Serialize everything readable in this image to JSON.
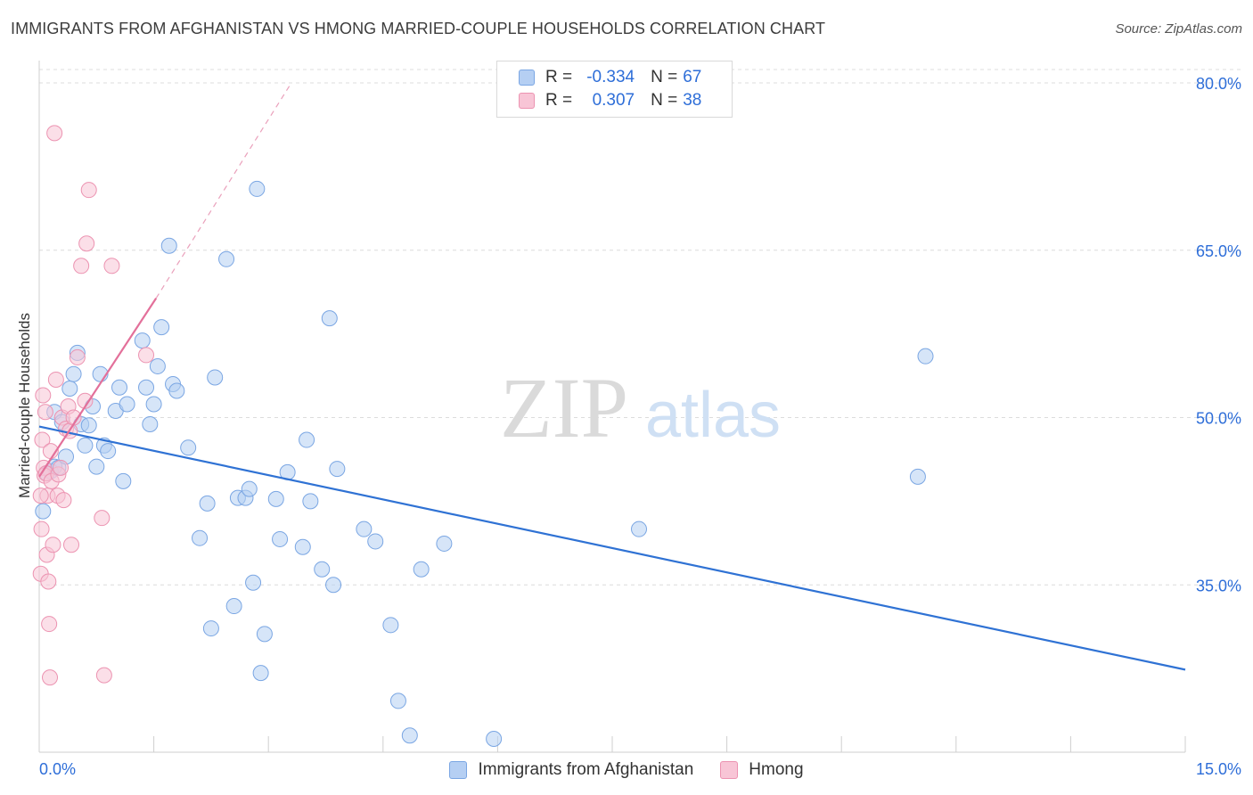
{
  "header": {
    "title": "IMMIGRANTS FROM AFGHANISTAN VS HMONG MARRIED-COUPLE HOUSEHOLDS CORRELATION CHART",
    "source": "Source: ZipAtlas.com"
  },
  "watermark": {
    "zip": "ZIP",
    "atlas": "atlas"
  },
  "legend": {
    "r_label": "R =",
    "n_label": "N =",
    "series": [
      {
        "name": "Immigrants from Afghanistan",
        "r": "-0.334",
        "n": "67",
        "color": "#b5cff3"
      },
      {
        "name": "Hmong",
        "r": "0.307",
        "n": "38",
        "color": "#f8c5d6"
      }
    ]
  },
  "chart_data": {
    "type": "scatter",
    "title": "IMMIGRANTS FROM AFGHANISTAN VS HMONG MARRIED-COUPLE HOUSEHOLDS CORRELATION CHART",
    "xlabel": "",
    "ylabel": "Married-couple Households",
    "xlim": [
      0,
      15
    ],
    "ylim": [
      20,
      82
    ],
    "x_tick_labels": [
      "0.0%",
      "15.0%"
    ],
    "y_ticks": [
      35,
      50,
      65,
      80
    ],
    "y_tick_labels": [
      "35.0%",
      "50.0%",
      "65.0%",
      "80.0%"
    ],
    "grid": true,
    "series": [
      {
        "name": "Immigrants from Afghanistan",
        "color": "#7aa6e3",
        "fill": "#b5cff3",
        "trend": {
          "x": [
            0.0,
            15.0
          ],
          "y": [
            49.2,
            27.4
          ]
        },
        "points": [
          [
            0.05,
            41.6
          ],
          [
            0.1,
            45.0
          ],
          [
            0.15,
            45.2
          ],
          [
            0.2,
            45.6
          ],
          [
            0.25,
            45.5
          ],
          [
            0.2,
            50.5
          ],
          [
            0.3,
            49.6
          ],
          [
            0.35,
            46.5
          ],
          [
            0.4,
            52.6
          ],
          [
            0.45,
            53.9
          ],
          [
            0.5,
            55.8
          ],
          [
            0.55,
            49.4
          ],
          [
            0.6,
            47.5
          ],
          [
            0.65,
            49.3
          ],
          [
            0.7,
            51.0
          ],
          [
            0.75,
            45.6
          ],
          [
            0.8,
            53.9
          ],
          [
            0.85,
            47.5
          ],
          [
            0.9,
            47.0
          ],
          [
            1.0,
            50.6
          ],
          [
            1.05,
            52.7
          ],
          [
            1.1,
            44.3
          ],
          [
            1.15,
            51.2
          ],
          [
            1.35,
            56.9
          ],
          [
            1.4,
            52.7
          ],
          [
            1.45,
            49.4
          ],
          [
            1.5,
            51.2
          ],
          [
            1.55,
            54.6
          ],
          [
            1.6,
            58.1
          ],
          [
            1.7,
            65.4
          ],
          [
            1.75,
            53.0
          ],
          [
            1.8,
            52.4
          ],
          [
            1.95,
            47.3
          ],
          [
            2.1,
            39.2
          ],
          [
            2.2,
            42.3
          ],
          [
            2.25,
            31.1
          ],
          [
            2.3,
            53.6
          ],
          [
            2.45,
            64.2
          ],
          [
            2.55,
            33.1
          ],
          [
            2.6,
            42.8
          ],
          [
            2.7,
            42.8
          ],
          [
            2.75,
            43.6
          ],
          [
            2.8,
            35.2
          ],
          [
            2.85,
            70.5
          ],
          [
            2.9,
            27.1
          ],
          [
            2.95,
            30.6
          ],
          [
            3.1,
            42.7
          ],
          [
            3.15,
            39.1
          ],
          [
            3.25,
            45.1
          ],
          [
            3.45,
            38.4
          ],
          [
            3.5,
            48.0
          ],
          [
            3.55,
            42.5
          ],
          [
            3.7,
            36.4
          ],
          [
            3.8,
            58.9
          ],
          [
            3.85,
            35.0
          ],
          [
            3.9,
            45.4
          ],
          [
            4.25,
            40.0
          ],
          [
            4.4,
            38.9
          ],
          [
            4.6,
            31.4
          ],
          [
            4.7,
            24.6
          ],
          [
            4.85,
            21.5
          ],
          [
            5.0,
            36.4
          ],
          [
            5.3,
            38.7
          ],
          [
            5.95,
            21.2
          ],
          [
            7.85,
            40.0
          ],
          [
            11.5,
            44.7
          ],
          [
            11.6,
            55.5
          ]
        ]
      },
      {
        "name": "Hmong",
        "color": "#ec93b1",
        "fill": "#f8c5d6",
        "trend": {
          "x": [
            0.0,
            1.53
          ],
          "y": [
            44.7,
            60.7
          ]
        },
        "trend_extended": {
          "x": [
            1.53,
            3.3
          ],
          "y": [
            60.7,
            80.0
          ]
        },
        "points": [
          [
            0.02,
            36.0
          ],
          [
            0.03,
            40.0
          ],
          [
            0.04,
            48.0
          ],
          [
            0.05,
            52.0
          ],
          [
            0.06,
            45.5
          ],
          [
            0.07,
            44.8
          ],
          [
            0.08,
            50.5
          ],
          [
            0.09,
            45.0
          ],
          [
            0.1,
            37.7
          ],
          [
            0.11,
            43.0
          ],
          [
            0.12,
            35.3
          ],
          [
            0.13,
            31.5
          ],
          [
            0.14,
            26.7
          ],
          [
            0.15,
            47.0
          ],
          [
            0.16,
            44.3
          ],
          [
            0.18,
            38.6
          ],
          [
            0.2,
            75.5
          ],
          [
            0.22,
            53.4
          ],
          [
            0.24,
            43.0
          ],
          [
            0.25,
            44.9
          ],
          [
            0.28,
            45.5
          ],
          [
            0.3,
            50.0
          ],
          [
            0.32,
            42.6
          ],
          [
            0.35,
            49.0
          ],
          [
            0.38,
            51.0
          ],
          [
            0.4,
            48.8
          ],
          [
            0.42,
            38.6
          ],
          [
            0.45,
            50.0
          ],
          [
            0.5,
            55.4
          ],
          [
            0.55,
            63.6
          ],
          [
            0.6,
            51.5
          ],
          [
            0.62,
            65.6
          ],
          [
            0.65,
            70.4
          ],
          [
            0.82,
            41.0
          ],
          [
            0.85,
            26.9
          ],
          [
            0.95,
            63.6
          ],
          [
            1.4,
            55.6
          ],
          [
            0.02,
            43.0
          ]
        ]
      }
    ]
  }
}
